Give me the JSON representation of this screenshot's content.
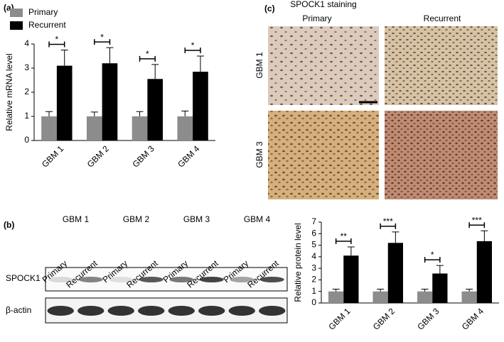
{
  "chart_data": [
    {
      "type": "bar",
      "panel_label": "(a)",
      "y_label": "Relative mRNA level",
      "categories": [
        "GBM 1",
        "GBM 2",
        "GBM 3",
        "GBM 4"
      ],
      "series": [
        {
          "name": "Primary",
          "color": "#8c8c8c",
          "values": [
            1.0,
            1.0,
            1.0,
            1.0
          ],
          "errors": [
            0.2,
            0.18,
            0.2,
            0.22
          ]
        },
        {
          "name": "Recurrent",
          "color": "#000000",
          "values": [
            3.1,
            3.2,
            2.55,
            2.85
          ],
          "errors": [
            0.65,
            0.65,
            0.6,
            0.65
          ]
        }
      ],
      "annotations": [
        "*",
        "*",
        "*",
        "*"
      ],
      "ylim": [
        0,
        4
      ],
      "yticks": [
        0,
        1,
        2,
        3,
        4
      ],
      "legend": "upper left"
    },
    {
      "type": "bar",
      "y_label": "Relative protein level",
      "categories": [
        "GBM 1",
        "GBM 2",
        "GBM 3",
        "GBM 4"
      ],
      "series": [
        {
          "color": "#8c8c8c",
          "values": [
            1.0,
            1.0,
            1.0,
            1.0
          ],
          "errors": [
            0.2,
            0.2,
            0.2,
            0.2
          ]
        },
        {
          "color": "#000000",
          "values": [
            4.1,
            5.2,
            2.55,
            5.35
          ],
          "errors": [
            0.75,
            0.95,
            0.7,
            0.9
          ]
        }
      ],
      "annotations": [
        "**",
        "***",
        "*",
        "***"
      ],
      "ylim": [
        0,
        7
      ],
      "yticks": [
        0,
        1,
        2,
        3,
        4,
        5,
        6,
        7
      ]
    }
  ],
  "staining": {
    "panel_label": "(c)",
    "title": "SPOCK1 staining",
    "columns": [
      "Primary",
      "Recurrent"
    ],
    "rows": [
      "GBM 1",
      "GBM 3"
    ]
  },
  "western_blot": {
    "panel_label": "(b)",
    "groups": [
      "GBM 1",
      "GBM 2",
      "GBM 3",
      "GBM 4"
    ],
    "lanes": [
      "Primary",
      "Recurrent",
      "Primary",
      "Recurrent",
      "Primary",
      "Recurrent",
      "Primary",
      "Recurrent"
    ],
    "rows": [
      "SPOCK1",
      "β-actin"
    ]
  }
}
